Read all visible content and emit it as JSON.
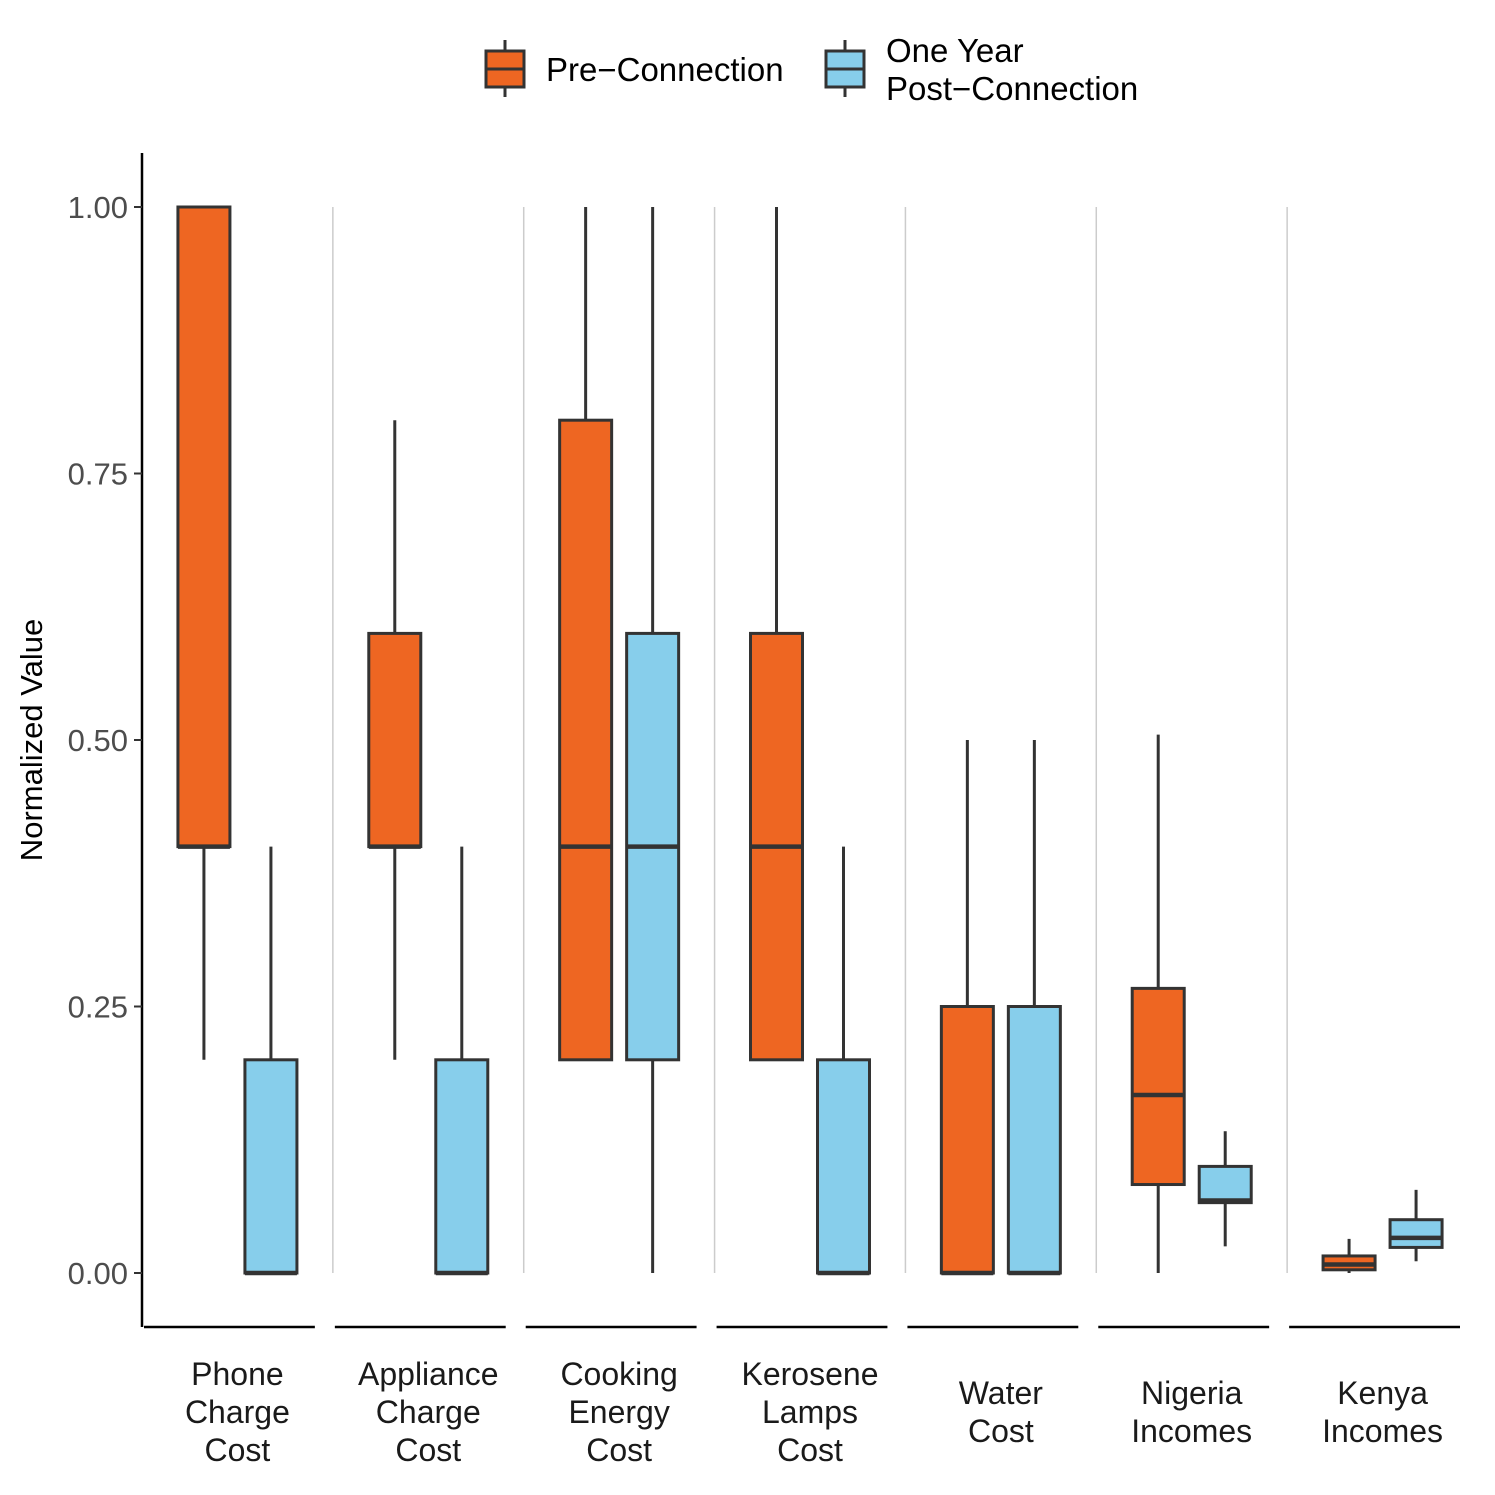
{
  "chart_data": {
    "type": "boxplot",
    "ylabel": "Normalized Value",
    "ylim": [
      -0.05,
      1.05
    ],
    "yticks": [
      "0.00",
      "0.25",
      "0.50",
      "0.75",
      "1.00"
    ],
    "ytick_values": [
      0,
      0.25,
      0.5,
      0.75,
      1.0
    ],
    "categories": [
      [
        "Phone",
        "Charge",
        "Cost"
      ],
      [
        "Appliance",
        "Charge",
        "Cost"
      ],
      [
        "Cooking",
        "Energy",
        "Cost"
      ],
      [
        "Kerosene",
        "Lamps",
        "Cost"
      ],
      [
        "Water",
        "Cost"
      ],
      [
        "Nigeria",
        "Incomes"
      ],
      [
        "Kenya",
        "Incomes"
      ]
    ],
    "legend": {
      "position": "top",
      "entries": [
        {
          "label_lines": [
            "Pre−Connection"
          ],
          "color": "#EE6622"
        },
        {
          "label_lines": [
            "One Year",
            "Post−Connection"
          ],
          "color": "#87CEEB"
        }
      ]
    },
    "series": [
      {
        "name": "Pre-Connection",
        "color": "#EE6622",
        "boxes": [
          {
            "min": 0.2,
            "q1": 0.4,
            "median": 0.4,
            "q3": 1.0,
            "max": 1.0
          },
          {
            "min": 0.2,
            "q1": 0.4,
            "median": 0.4,
            "q3": 0.6,
            "max": 0.8
          },
          {
            "min": 0.2,
            "q1": 0.2,
            "median": 0.4,
            "q3": 0.8,
            "max": 1.0
          },
          {
            "min": 0.2,
            "q1": 0.2,
            "median": 0.4,
            "q3": 0.6,
            "max": 1.0
          },
          {
            "min": 0.0,
            "q1": 0.0,
            "median": 0.0,
            "q3": 0.25,
            "max": 0.5
          },
          {
            "min": 0.0,
            "q1": 0.083,
            "median": 0.167,
            "q3": 0.267,
            "max": 0.505
          },
          {
            "min": 0.0,
            "q1": 0.003,
            "median": 0.008,
            "q3": 0.016,
            "max": 0.032
          }
        ]
      },
      {
        "name": "One Year Post-Connection",
        "color": "#87CEEB",
        "boxes": [
          {
            "min": 0.0,
            "q1": 0.0,
            "median": 0.0,
            "q3": 0.2,
            "max": 0.4
          },
          {
            "min": 0.0,
            "q1": 0.0,
            "median": 0.0,
            "q3": 0.2,
            "max": 0.4
          },
          {
            "min": 0.0,
            "q1": 0.2,
            "median": 0.4,
            "q3": 0.6,
            "max": 1.0
          },
          {
            "min": 0.0,
            "q1": 0.0,
            "median": 0.0,
            "q3": 0.2,
            "max": 0.4
          },
          {
            "min": 0.0,
            "q1": 0.0,
            "median": 0.0,
            "q3": 0.25,
            "max": 0.5
          },
          {
            "min": 0.025,
            "q1": 0.066,
            "median": 0.068,
            "q3": 0.1,
            "max": 0.133
          },
          {
            "min": 0.011,
            "q1": 0.024,
            "median": 0.033,
            "q3": 0.05,
            "max": 0.078
          }
        ]
      }
    ]
  }
}
